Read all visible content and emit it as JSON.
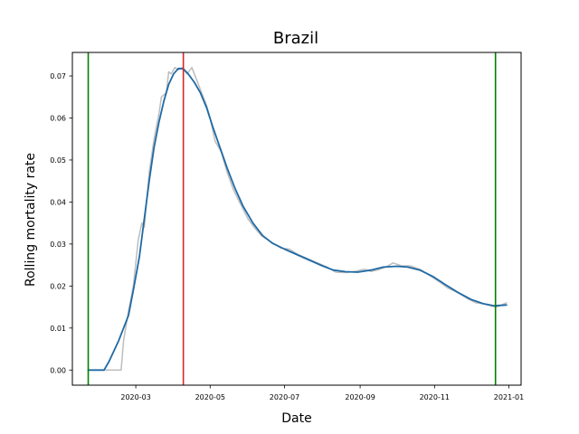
{
  "chart_data": {
    "type": "line",
    "title": "Brazil",
    "xlabel": "Date",
    "ylabel": "Rolling mortality rate",
    "xlim": [
      "2020-01-09",
      "2021-01-11"
    ],
    "ylim": [
      -0.0036,
      0.0756
    ],
    "x_ticks": [
      "2020-03",
      "2020-05",
      "2020-07",
      "2020-09",
      "2020-11",
      "2021-01"
    ],
    "y_ticks": [
      "0.00",
      "0.01",
      "0.02",
      "0.03",
      "0.04",
      "0.05",
      "0.06",
      "0.07"
    ],
    "grid": false,
    "legend": "none",
    "series": [
      {
        "kind": "raw",
        "color": "#bdbdbd",
        "points": [
          [
            "2020-01-22",
            0.0
          ],
          [
            "2020-02-01",
            0.0
          ],
          [
            "2020-02-15",
            0.0
          ],
          [
            "2020-02-18",
            0.0
          ],
          [
            "2020-02-20",
            0.007
          ],
          [
            "2020-02-24",
            0.014
          ],
          [
            "2020-02-28",
            0.02
          ],
          [
            "2020-03-03",
            0.031
          ],
          [
            "2020-03-06",
            0.035
          ],
          [
            "2020-03-08",
            0.034
          ],
          [
            "2020-03-12",
            0.047
          ],
          [
            "2020-03-16",
            0.055
          ],
          [
            "2020-03-20",
            0.061
          ],
          [
            "2020-03-22",
            0.065
          ],
          [
            "2020-03-26",
            0.066
          ],
          [
            "2020-03-28",
            0.071
          ],
          [
            "2020-03-30",
            0.0705
          ],
          [
            "2020-04-02",
            0.072
          ],
          [
            "2020-04-05",
            0.0715
          ],
          [
            "2020-04-08",
            0.072
          ],
          [
            "2020-04-12",
            0.0705
          ],
          [
            "2020-04-16",
            0.072
          ],
          [
            "2020-04-20",
            0.069
          ],
          [
            "2020-04-24",
            0.066
          ],
          [
            "2020-04-28",
            0.063
          ],
          [
            "2020-05-01",
            0.06
          ],
          [
            "2020-05-05",
            0.0545
          ],
          [
            "2020-05-10",
            0.052
          ],
          [
            "2020-05-15",
            0.047
          ],
          [
            "2020-05-20",
            0.043
          ],
          [
            "2020-05-25",
            0.04
          ],
          [
            "2020-06-01",
            0.036
          ],
          [
            "2020-06-06",
            0.034
          ],
          [
            "2020-06-12",
            0.032
          ],
          [
            "2020-06-20",
            0.0305
          ],
          [
            "2020-06-28",
            0.029
          ],
          [
            "2020-07-05",
            0.0288
          ],
          [
            "2020-07-12",
            0.0275
          ],
          [
            "2020-07-20",
            0.0265
          ],
          [
            "2020-07-28",
            0.0255
          ],
          [
            "2020-08-05",
            0.0245
          ],
          [
            "2020-08-12",
            0.0233
          ],
          [
            "2020-08-20",
            0.0232
          ],
          [
            "2020-08-28",
            0.0235
          ],
          [
            "2020-09-04",
            0.024
          ],
          [
            "2020-09-10",
            0.0235
          ],
          [
            "2020-09-15",
            0.0238
          ],
          [
            "2020-09-22",
            0.0245
          ],
          [
            "2020-09-28",
            0.0255
          ],
          [
            "2020-10-05",
            0.0248
          ],
          [
            "2020-10-12",
            0.0248
          ],
          [
            "2020-10-20",
            0.024
          ],
          [
            "2020-10-28",
            0.0225
          ],
          [
            "2020-11-05",
            0.021
          ],
          [
            "2020-11-12",
            0.0195
          ],
          [
            "2020-11-20",
            0.0185
          ],
          [
            "2020-11-28",
            0.017
          ],
          [
            "2020-12-05",
            0.016
          ],
          [
            "2020-12-12",
            0.0157
          ],
          [
            "2020-12-18",
            0.0152
          ],
          [
            "2020-12-22",
            0.015
          ],
          [
            "2020-12-26",
            0.0155
          ],
          [
            "2020-12-30",
            0.016
          ]
        ]
      },
      {
        "kind": "smoothed",
        "color": "#1f6aa5",
        "points": [
          [
            "2020-01-22",
            0.0
          ],
          [
            "2020-02-04",
            0.0
          ],
          [
            "2020-02-08",
            0.002
          ],
          [
            "2020-02-12",
            0.0045
          ],
          [
            "2020-02-16",
            0.007
          ],
          [
            "2020-02-20",
            0.01
          ],
          [
            "2020-02-24",
            0.013
          ],
          [
            "2020-02-28",
            0.019
          ],
          [
            "2020-03-04",
            0.027
          ],
          [
            "2020-03-08",
            0.036
          ],
          [
            "2020-03-12",
            0.045
          ],
          [
            "2020-03-16",
            0.053
          ],
          [
            "2020-03-20",
            0.059
          ],
          [
            "2020-03-24",
            0.064
          ],
          [
            "2020-03-28",
            0.068
          ],
          [
            "2020-04-01",
            0.0705
          ],
          [
            "2020-04-05",
            0.0718
          ],
          [
            "2020-04-09",
            0.0717
          ],
          [
            "2020-04-13",
            0.0705
          ],
          [
            "2020-04-18",
            0.0685
          ],
          [
            "2020-04-23",
            0.066
          ],
          [
            "2020-04-28",
            0.0625
          ],
          [
            "2020-05-03",
            0.058
          ],
          [
            "2020-05-09",
            0.053
          ],
          [
            "2020-05-15",
            0.048
          ],
          [
            "2020-05-21",
            0.0435
          ],
          [
            "2020-05-28",
            0.039
          ],
          [
            "2020-06-05",
            0.035
          ],
          [
            "2020-06-13",
            0.032
          ],
          [
            "2020-06-21",
            0.0302
          ],
          [
            "2020-07-01",
            0.0288
          ],
          [
            "2020-07-11",
            0.0275
          ],
          [
            "2020-07-21",
            0.0262
          ],
          [
            "2020-08-01",
            0.0248
          ],
          [
            "2020-08-10",
            0.0238
          ],
          [
            "2020-08-20",
            0.0234
          ],
          [
            "2020-08-30",
            0.0233
          ],
          [
            "2020-09-10",
            0.0238
          ],
          [
            "2020-09-20",
            0.0245
          ],
          [
            "2020-10-01",
            0.0247
          ],
          [
            "2020-10-10",
            0.0245
          ],
          [
            "2020-10-20",
            0.0238
          ],
          [
            "2020-10-31",
            0.0222
          ],
          [
            "2020-11-10",
            0.0203
          ],
          [
            "2020-11-20",
            0.0185
          ],
          [
            "2020-12-01",
            0.0168
          ],
          [
            "2020-12-11",
            0.0158
          ],
          [
            "2020-12-20",
            0.0153
          ],
          [
            "2020-12-30",
            0.0155
          ]
        ]
      }
    ],
    "vlines": [
      {
        "x": "2020-01-22",
        "color": "#008000"
      },
      {
        "x": "2020-04-09",
        "color": "#d62728"
      },
      {
        "x": "2020-12-21",
        "color": "#008000"
      }
    ]
  }
}
